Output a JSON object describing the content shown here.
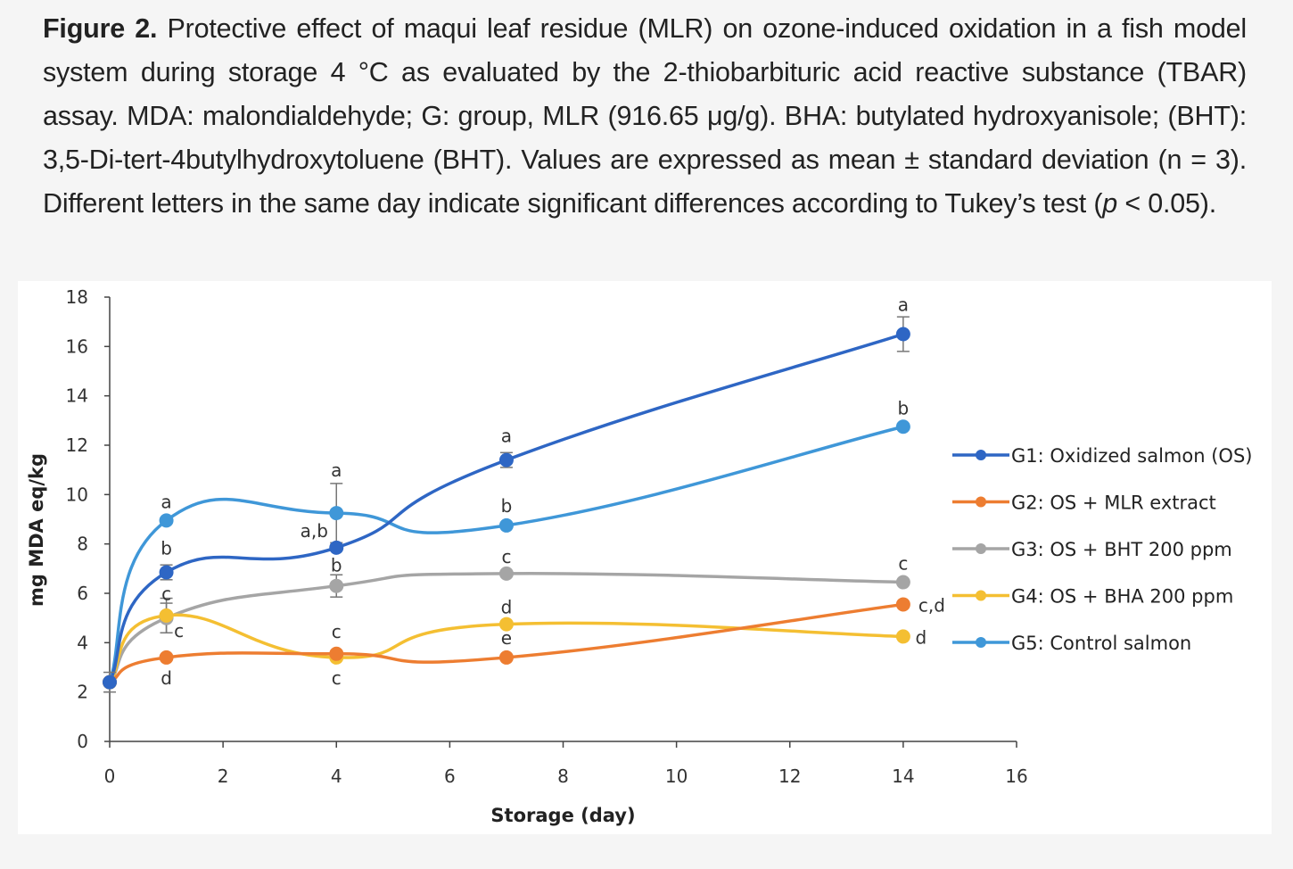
{
  "caption": {
    "label": "Figure 2.",
    "text_1": " Protective effect of maqui leaf residue (MLR) on ozone-induced oxidation in a fish model system during storage 4 °C as evaluated by the 2-thiobarbituric acid reactive substance (TBAR) assay. MDA: malondialdehyde; G: group, MLR (916.65 μg/g). BHA: butylated hydroxyanisole; (BHT): 3,5-Di-tert-4butylhydroxytoluene (BHT). Values are expressed as mean ± standard deviation (n = 3). Different letters in the same day indicate significant differences according to Tukey’s test (",
    "p_symbol": "p",
    "text_2": " < 0.05)."
  },
  "chart_data": {
    "type": "line",
    "xlabel": "Storage (day)",
    "ylabel": "mg MDA eq/kg",
    "xlim": [
      0,
      16
    ],
    "ylim": [
      0,
      18
    ],
    "xticks": [
      "0",
      "2",
      "4",
      "6",
      "8",
      "10",
      "12",
      "14",
      "16"
    ],
    "yticks": [
      "0",
      "2",
      "4",
      "6",
      "8",
      "10",
      "12",
      "14",
      "16",
      "18"
    ],
    "grid": false,
    "legend_position": "right",
    "x": [
      0,
      1,
      4,
      7,
      14
    ],
    "series": [
      {
        "name": "G1: Oxidized salmon (OS)",
        "color": "#2e66c4",
        "values": [
          2.4,
          6.85,
          7.85,
          11.4,
          16.5
        ],
        "errors": [
          0.4,
          0.3,
          0.0,
          0.3,
          0.7
        ],
        "letters": [
          "",
          "b",
          "a,b",
          "a",
          "a"
        ]
      },
      {
        "name": "G2: OS + MLR extract",
        "color": "#ed7d31",
        "values": [
          2.4,
          3.4,
          3.55,
          3.4,
          5.55
        ],
        "errors": [
          0,
          0.1,
          0.1,
          0.1,
          0.1
        ],
        "letters": [
          "",
          "d",
          "c",
          "e",
          "c,d"
        ]
      },
      {
        "name": "G3: OS + BHT 200 ppm",
        "color": "#a5a5a5",
        "values": [
          2.4,
          5.0,
          6.3,
          6.8,
          6.45
        ],
        "errors": [
          0,
          0.6,
          0.45,
          0.1,
          0.1
        ],
        "letters": [
          "",
          "c",
          "b",
          "c",
          "c"
        ]
      },
      {
        "name": "G4: OS + BHA 200 ppm",
        "color": "#f4bf32",
        "values": [
          2.4,
          5.1,
          3.4,
          4.75,
          4.25
        ],
        "errors": [
          0,
          0.7,
          0.1,
          0.1,
          0.1
        ],
        "letters": [
          "",
          "c",
          "c",
          "d",
          "d"
        ]
      },
      {
        "name": "G5: Control salmon",
        "color": "#3f97d8",
        "values": [
          2.4,
          8.95,
          9.25,
          8.75,
          12.75
        ],
        "errors": [
          0,
          0.1,
          1.2,
          0.1,
          0.1
        ],
        "letters": [
          "",
          "a",
          "a",
          "b",
          "b"
        ]
      }
    ]
  }
}
